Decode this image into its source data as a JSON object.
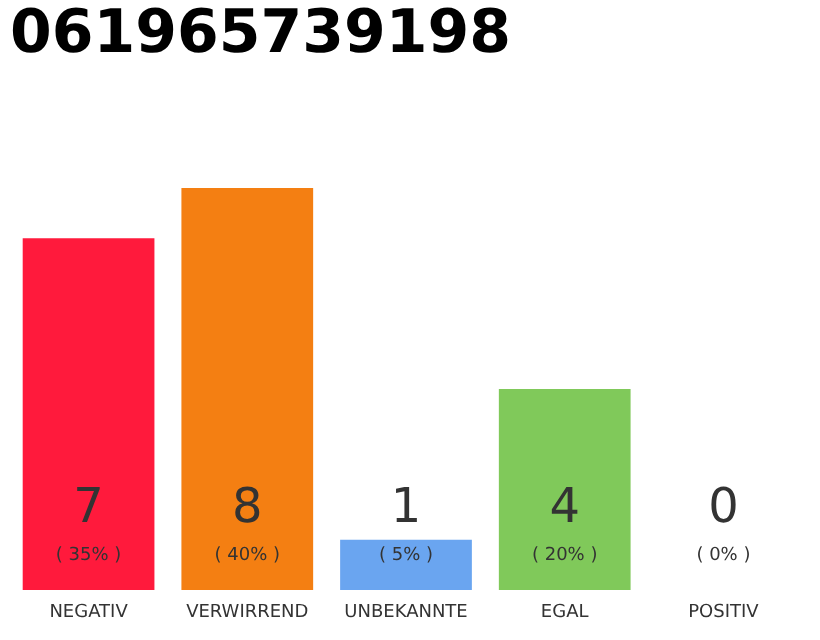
{
  "chart_data": {
    "type": "bar",
    "title": "061965739198",
    "categories": [
      "NEGATIV",
      "VERWIRREND",
      "UNBEKANNTE",
      "EGAL",
      "POSITIV"
    ],
    "values": [
      35,
      40,
      5,
      20,
      0
    ],
    "colors": [
      "#ff1a3c",
      "#f47f12",
      "#6aa5f0",
      "#80c95a",
      "#cccccc"
    ],
    "value_labels": [
      "( 35% )",
      "( 40% )",
      "( 5% )",
      "( 20% )",
      "( 0% )"
    ],
    "annotations": [
      "7",
      "8",
      "1",
      "4",
      "0"
    ],
    "tick_labels": "x"
  }
}
